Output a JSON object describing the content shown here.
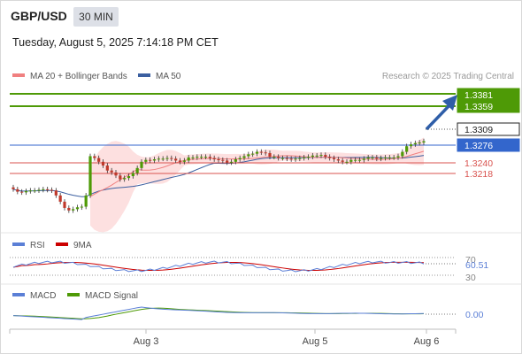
{
  "header": {
    "symbol": "GBP/USD",
    "timeframe": "30 MIN",
    "datetime": "Tuesday, August 5, 2025 7:14:18 PM CET"
  },
  "legend": {
    "ma20_bb": "MA 20 + Bollinger Bands",
    "ma50": "MA 50",
    "ma20_color": "#f08080",
    "ma50_color": "#3b5fa0"
  },
  "credit": "Research © 2025 Trading Central",
  "price_levels": {
    "r2": "1.3381",
    "r1": "1.3359",
    "last": "1.3309",
    "pivot": "1.3276",
    "s1": "1.3240",
    "s2": "1.3218",
    "green_color": "#4e9a06",
    "blue_color": "#3366cc",
    "red_color": "#d9534f"
  },
  "rsi_panel": {
    "label": "RSI",
    "signal_label": "9MA",
    "rsi_color": "#5b7fd6",
    "signal_color": "#cc0000",
    "value": "60.51",
    "upper": "70",
    "lower": "30"
  },
  "macd_panel": {
    "label": "MACD",
    "signal_label": "MACD Signal",
    "macd_color": "#5b7fd6",
    "signal_color": "#4e9a06",
    "value": "0.00"
  },
  "x_axis": {
    "ticks": [
      "Aug 3",
      "Aug 5",
      "Aug 6"
    ]
  },
  "chart_data": {
    "type": "candlestick",
    "ylim": [
      1.3165,
      1.3395
    ],
    "closes": [
      1.3232,
      1.3228,
      1.3227,
      1.3229,
      1.323,
      1.323,
      1.3231,
      1.3232,
      1.3231,
      1.323,
      1.3222,
      1.3212,
      1.3202,
      1.3198,
      1.32,
      1.3203,
      1.3204,
      1.3222,
      1.3285,
      1.3282,
      1.3276,
      1.327,
      1.3262,
      1.3259,
      1.3254,
      1.3248,
      1.325,
      1.3253,
      1.3258,
      1.3266,
      1.3276,
      1.3279,
      1.3278,
      1.328,
      1.3281,
      1.3281,
      1.3282,
      1.3281,
      1.3278,
      1.3276,
      1.3278,
      1.3283,
      1.3283,
      1.3284,
      1.3284,
      1.3284,
      1.3282,
      1.328,
      1.3279,
      1.3278,
      1.3275,
      1.3276,
      1.328,
      1.3282,
      1.3285,
      1.3288,
      1.3289,
      1.3292,
      1.3291,
      1.329,
      1.3284,
      1.3284,
      1.3282,
      1.3282,
      1.3281,
      1.328,
      1.3281,
      1.3282,
      1.3283,
      1.3284,
      1.3286,
      1.3286,
      1.3287,
      1.3284,
      1.3282,
      1.328,
      1.3278,
      1.3276,
      1.3276,
      1.3279,
      1.3279,
      1.3279,
      1.3281,
      1.3283,
      1.3283,
      1.3281,
      1.3282,
      1.3283,
      1.3283,
      1.3283,
      1.3285,
      1.3292,
      1.3301,
      1.3304,
      1.3306,
      1.3307,
      1.3309
    ]
  }
}
